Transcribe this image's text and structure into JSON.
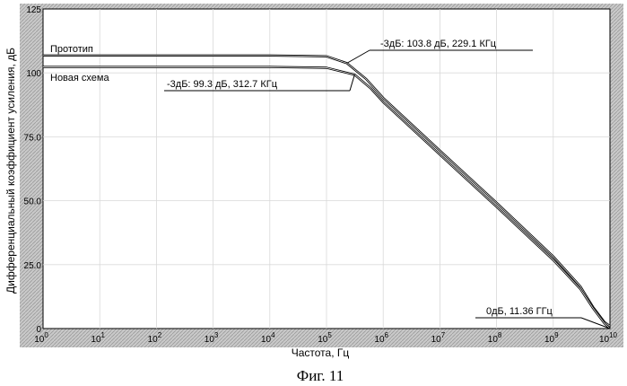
{
  "chart_data": {
    "type": "line",
    "xlabel": "Частота, Гц",
    "ylabel": "Дифференциальный коэффициент усиления, дБ",
    "x_scale": "log",
    "xlim": [
      1,
      10000000000
    ],
    "ylim": [
      0,
      125
    ],
    "x_ticks": [
      {
        "base": "10",
        "exp": "0"
      },
      {
        "base": "10",
        "exp": "1"
      },
      {
        "base": "10",
        "exp": "2"
      },
      {
        "base": "10",
        "exp": "3"
      },
      {
        "base": "10",
        "exp": "4"
      },
      {
        "base": "10",
        "exp": "5"
      },
      {
        "base": "10",
        "exp": "6"
      },
      {
        "base": "10",
        "exp": "7"
      },
      {
        "base": "10",
        "exp": "8"
      },
      {
        "base": "10",
        "exp": "9"
      },
      {
        "base": "10",
        "exp": "10"
      }
    ],
    "y_ticks": [
      "0",
      "25.0",
      "50.0",
      "75.0",
      "100",
      "125"
    ],
    "series": [
      {
        "name": "Прототип",
        "x": [
          1,
          100,
          10000,
          100000,
          229100,
          500000,
          1000000,
          10000000,
          100000000,
          1000000000,
          3000000000,
          5000000000,
          8000000000,
          10000000000
        ],
        "y": [
          106.8,
          106.8,
          106.8,
          106.5,
          103.8,
          97.6,
          90.2,
          69.6,
          49.2,
          28.2,
          16.5,
          8.5,
          2.5,
          1
        ]
      },
      {
        "name": "Новая схема",
        "x": [
          1,
          100,
          10000,
          100000,
          312700,
          600000,
          1000000,
          10000000,
          100000000,
          1000000000,
          3000000000,
          5000000000,
          8000000000,
          10000000000
        ],
        "y": [
          102.3,
          102.3,
          102.3,
          102.0,
          99.3,
          94.0,
          88.6,
          68.0,
          47.6,
          26.8,
          15.5,
          8.0,
          2.0,
          0
        ]
      }
    ],
    "annotations": [
      {
        "text": "-3дБ: 103.8 дБ, 229.1 КГц",
        "x": 229100,
        "y": 103.8
      },
      {
        "text": "-3дБ: 99.3 дБ, 312.7 КГц",
        "x": 312700,
        "y": 99.3
      },
      {
        "text": "0дБ, 11.36 ГГц",
        "x": 10000000000,
        "y": 0
      }
    ]
  },
  "caption": "Фиг. 11"
}
